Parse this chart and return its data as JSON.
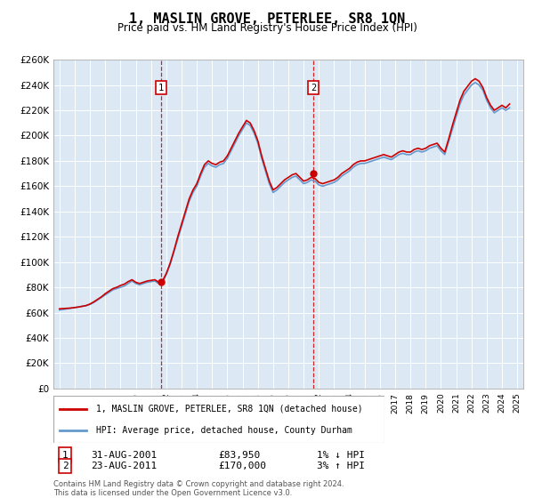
{
  "title": "1, MASLIN GROVE, PETERLEE, SR8 1QN",
  "subtitle": "Price paid vs. HM Land Registry's House Price Index (HPI)",
  "ylim": [
    0,
    260000
  ],
  "yticks": [
    0,
    20000,
    40000,
    60000,
    80000,
    100000,
    120000,
    140000,
    160000,
    180000,
    200000,
    220000,
    240000,
    260000
  ],
  "xlim_start": 1994.6,
  "xlim_end": 2025.4,
  "bg_color": "#dce9f5",
  "line_color_hpi": "#6699cc",
  "line_color_price": "#cc0000",
  "sale1_x": 2001.667,
  "sale1_y": 83950,
  "sale1_label": "31-AUG-2001",
  "sale1_price": "£83,950",
  "sale1_hpi": "1% ↓ HPI",
  "sale2_x": 2011.639,
  "sale2_y": 170000,
  "sale2_label": "23-AUG-2011",
  "sale2_price": "£170,000",
  "sale2_hpi": "3% ↑ HPI",
  "legend_line1": "1, MASLIN GROVE, PETERLEE, SR8 1QN (detached house)",
  "legend_line2": "HPI: Average price, detached house, County Durham",
  "footnote": "Contains HM Land Registry data © Crown copyright and database right 2024.\nThis data is licensed under the Open Government Licence v3.0.",
  "hpi_y": [
    62000,
    62500,
    63000,
    63500,
    64000,
    64500,
    65000,
    65500,
    66500,
    68000,
    70000,
    72000,
    74000,
    76000,
    78000,
    79000,
    80000,
    81000,
    83000,
    85000,
    83000,
    82000,
    83000,
    84000,
    84500,
    85000,
    83000,
    84000,
    90000,
    98000,
    108000,
    118000,
    128000,
    138000,
    148000,
    155000,
    160000,
    168000,
    175000,
    178000,
    176000,
    175000,
    177000,
    178000,
    182000,
    188000,
    194000,
    200000,
    205000,
    210000,
    208000,
    202000,
    194000,
    182000,
    172000,
    162000,
    155000,
    157000,
    160000,
    163000,
    165000,
    167000,
    168000,
    165000,
    162000,
    163000,
    165000,
    164000,
    161000,
    160000,
    161000,
    162000,
    163000,
    165000,
    168000,
    170000,
    172000,
    175000,
    177000,
    178000,
    178000,
    179000,
    180000,
    181000,
    182000,
    183000,
    182000,
    181000,
    183000,
    185000,
    186000,
    185000,
    185000,
    187000,
    188000,
    187000,
    188000,
    190000,
    191000,
    192000,
    188000,
    185000,
    195000,
    205000,
    215000,
    225000,
    232000,
    236000,
    240000,
    242000,
    240000,
    236000,
    228000,
    222000,
    218000,
    220000,
    222000,
    220000,
    222000
  ],
  "price_y": [
    63000,
    63200,
    63400,
    63600,
    64000,
    64400,
    65000,
    65600,
    66800,
    68500,
    70500,
    72500,
    75000,
    77000,
    79000,
    80000,
    81500,
    82500,
    84500,
    86000,
    84000,
    83000,
    84000,
    85000,
    85500,
    86000,
    84000,
    85000,
    91000,
    99000,
    109000,
    120000,
    130000,
    140000,
    150000,
    157000,
    162000,
    170000,
    177000,
    180000,
    178000,
    177000,
    179000,
    180000,
    184000,
    190000,
    196000,
    202000,
    207000,
    212000,
    210000,
    204000,
    196000,
    184000,
    174000,
    164000,
    157000,
    159000,
    162000,
    165000,
    167000,
    169000,
    170000,
    167000,
    164000,
    165000,
    167000,
    166000,
    163000,
    162000,
    163000,
    164000,
    165000,
    167000,
    170000,
    172000,
    174000,
    177000,
    179000,
    180000,
    180000,
    181000,
    182000,
    183000,
    184000,
    185000,
    184000,
    183000,
    185000,
    187000,
    188000,
    187000,
    187000,
    189000,
    190000,
    189000,
    190000,
    192000,
    193000,
    194000,
    190000,
    187000,
    197000,
    208000,
    218000,
    228000,
    235000,
    239000,
    243000,
    245000,
    243000,
    238000,
    230000,
    224000,
    220000,
    222000,
    224000,
    222000,
    225000
  ]
}
